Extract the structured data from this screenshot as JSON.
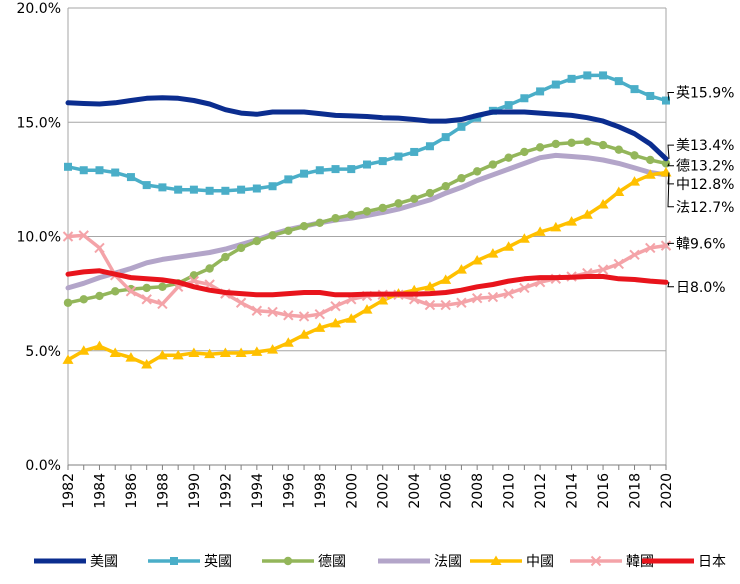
{
  "chart_data": {
    "type": "line",
    "title": "",
    "xlabel": "",
    "ylabel": "",
    "ylim": [
      0,
      20
    ],
    "grid": true,
    "legend_position": "bottom",
    "y_ticks": [
      "0.0%",
      "5.0%",
      "10.0%",
      "15.0%",
      "20.0%"
    ],
    "y_tick_values": [
      0,
      5,
      10,
      15,
      20
    ],
    "x": [
      1982,
      1983,
      1984,
      1985,
      1986,
      1987,
      1988,
      1989,
      1990,
      1991,
      1992,
      1993,
      1994,
      1995,
      1996,
      1997,
      1998,
      1999,
      2000,
      2001,
      2002,
      2003,
      2004,
      2005,
      2006,
      2007,
      2008,
      2009,
      2010,
      2011,
      2012,
      2013,
      2014,
      2015,
      2016,
      2017,
      2018,
      2019,
      2020
    ],
    "x_tick_labels": [
      "1982",
      "1984",
      "1986",
      "1988",
      "1990",
      "1992",
      "1994",
      "1996",
      "1998",
      "2000",
      "2002",
      "2004",
      "2006",
      "2008",
      "2010",
      "2012",
      "2014",
      "2016",
      "2018",
      "2020"
    ],
    "x_tick_values": [
      1982,
      1984,
      1986,
      1988,
      1990,
      1992,
      1994,
      1996,
      1998,
      2000,
      2002,
      2004,
      2006,
      2008,
      2010,
      2012,
      2014,
      2016,
      2018,
      2020
    ],
    "series": [
      {
        "name": "美國",
        "color": "#0b2d8f",
        "marker": "none",
        "end_label": "美13.4%",
        "values": [
          15.85,
          15.82,
          15.8,
          15.85,
          15.95,
          16.05,
          16.07,
          16.05,
          15.95,
          15.8,
          15.55,
          15.4,
          15.35,
          15.45,
          15.45,
          15.45,
          15.38,
          15.3,
          15.28,
          15.25,
          15.2,
          15.18,
          15.12,
          15.05,
          15.05,
          15.12,
          15.3,
          15.45,
          15.45,
          15.45,
          15.4,
          15.35,
          15.3,
          15.2,
          15.05,
          14.8,
          14.5,
          14.05,
          13.4
        ]
      },
      {
        "name": "英國",
        "color": "#4aaec8",
        "marker": "square",
        "end_label": "英15.9%",
        "values": [
          13.05,
          12.9,
          12.9,
          12.8,
          12.6,
          12.25,
          12.15,
          12.05,
          12.05,
          12.0,
          12.0,
          12.05,
          12.1,
          12.2,
          12.5,
          12.75,
          12.9,
          12.95,
          12.95,
          13.15,
          13.3,
          13.5,
          13.7,
          13.95,
          14.35,
          14.8,
          15.2,
          15.5,
          15.75,
          16.05,
          16.35,
          16.65,
          16.9,
          17.05,
          17.05,
          16.8,
          16.45,
          16.15,
          15.95
        ]
      },
      {
        "name": "德國",
        "color": "#93b65a",
        "marker": "circle",
        "end_label": "德13.2%",
        "values": [
          7.1,
          7.25,
          7.4,
          7.6,
          7.7,
          7.75,
          7.8,
          7.95,
          8.3,
          8.6,
          9.1,
          9.5,
          9.8,
          10.05,
          10.25,
          10.45,
          10.6,
          10.8,
          10.95,
          11.1,
          11.25,
          11.45,
          11.65,
          11.9,
          12.2,
          12.55,
          12.85,
          13.15,
          13.45,
          13.7,
          13.9,
          14.05,
          14.1,
          14.15,
          14.0,
          13.8,
          13.55,
          13.35,
          13.2
        ]
      },
      {
        "name": "法國",
        "color": "#b3a5c9",
        "marker": "none",
        "end_label": "法12.7%",
        "values": [
          7.75,
          7.95,
          8.2,
          8.4,
          8.6,
          8.85,
          9.0,
          9.1,
          9.2,
          9.3,
          9.45,
          9.65,
          9.85,
          10.1,
          10.3,
          10.45,
          10.6,
          10.72,
          10.8,
          10.92,
          11.05,
          11.2,
          11.4,
          11.6,
          11.9,
          12.15,
          12.45,
          12.7,
          12.95,
          13.2,
          13.45,
          13.55,
          13.5,
          13.45,
          13.35,
          13.2,
          13.0,
          12.8,
          12.7
        ]
      },
      {
        "name": "中國",
        "color": "#ffc000",
        "marker": "triangle",
        "end_label": "中12.8%",
        "values": [
          4.6,
          5.0,
          5.2,
          4.9,
          4.7,
          4.4,
          4.8,
          4.8,
          4.9,
          4.85,
          4.9,
          4.9,
          4.95,
          5.05,
          5.35,
          5.7,
          6.0,
          6.2,
          6.4,
          6.8,
          7.2,
          7.5,
          7.65,
          7.8,
          8.1,
          8.55,
          8.95,
          9.25,
          9.55,
          9.9,
          10.2,
          10.4,
          10.65,
          10.95,
          11.4,
          11.95,
          12.4,
          12.7,
          12.8
        ]
      },
      {
        "name": "韓國",
        "color": "#f4a3a8",
        "marker": "x",
        "end_label": "韓9.6%",
        "values": [
          10.0,
          10.05,
          9.5,
          8.3,
          7.6,
          7.25,
          7.05,
          7.8,
          8.05,
          7.9,
          7.5,
          7.1,
          6.75,
          6.7,
          6.55,
          6.5,
          6.6,
          6.95,
          7.25,
          7.4,
          7.45,
          7.45,
          7.25,
          7.0,
          7.0,
          7.1,
          7.3,
          7.35,
          7.5,
          7.75,
          8.0,
          8.15,
          8.25,
          8.4,
          8.55,
          8.8,
          9.2,
          9.5,
          9.6
        ]
      },
      {
        "name": "日本",
        "color": "#e8141c",
        "marker": "none",
        "end_label": "日8.0%",
        "values": [
          8.35,
          8.45,
          8.5,
          8.35,
          8.2,
          8.15,
          8.1,
          8.0,
          7.8,
          7.65,
          7.55,
          7.5,
          7.45,
          7.45,
          7.5,
          7.55,
          7.55,
          7.45,
          7.45,
          7.48,
          7.48,
          7.48,
          7.48,
          7.5,
          7.55,
          7.65,
          7.8,
          7.9,
          8.05,
          8.15,
          8.2,
          8.2,
          8.22,
          8.25,
          8.25,
          8.15,
          8.12,
          8.05,
          8.0
        ]
      }
    ],
    "end_label_targets": {
      "英國": 16.3,
      "美國": 14.0,
      "德國": 13.1,
      "中國": 12.3,
      "法國": 11.3,
      "韓國": 9.7,
      "日本": 7.8
    }
  }
}
